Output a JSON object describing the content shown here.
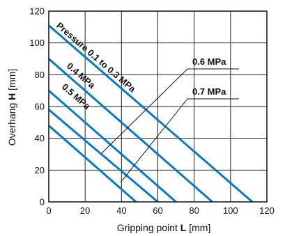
{
  "chart_data": {
    "type": "line",
    "title": "",
    "xlabel": {
      "prefix": "Gripping point ",
      "bold": "L",
      "suffix": " [mm]"
    },
    "ylabel": {
      "prefix": "Overhang ",
      "bold": "H",
      "suffix": " [mm]"
    },
    "xlim": [
      0,
      120
    ],
    "ylim": [
      0,
      120
    ],
    "xticks": [
      0,
      20,
      40,
      60,
      80,
      100,
      120
    ],
    "yticks": [
      0,
      20,
      40,
      60,
      80,
      100,
      120
    ],
    "grid": true,
    "line_color": "#0a78c8",
    "series": [
      {
        "name": "Pressure 0.1 to 0.3 MPa",
        "x": [
          0,
          112
        ],
        "y": [
          111,
          0
        ]
      },
      {
        "name": "0.4 MPa",
        "x": [
          0,
          90
        ],
        "y": [
          90,
          0
        ]
      },
      {
        "name": "0.5 MPa",
        "x": [
          0,
          70
        ],
        "y": [
          70,
          0
        ]
      },
      {
        "name": "0.6 MPa",
        "x": [
          0,
          60
        ],
        "y": [
          58,
          0
        ]
      },
      {
        "name": "0.7 MPa",
        "x": [
          0,
          48
        ],
        "y": [
          48,
          0
        ]
      }
    ],
    "annotations": [
      {
        "text": "Pressure 0.1 to 0.3 MPa",
        "type": "along-line"
      },
      {
        "text": "0.4 MPa",
        "type": "along-line"
      },
      {
        "text": "0.5 MPa",
        "type": "along-line"
      },
      {
        "text": "0.6 MPa",
        "type": "callout"
      },
      {
        "text": "0.7 MPa",
        "type": "callout"
      }
    ]
  }
}
